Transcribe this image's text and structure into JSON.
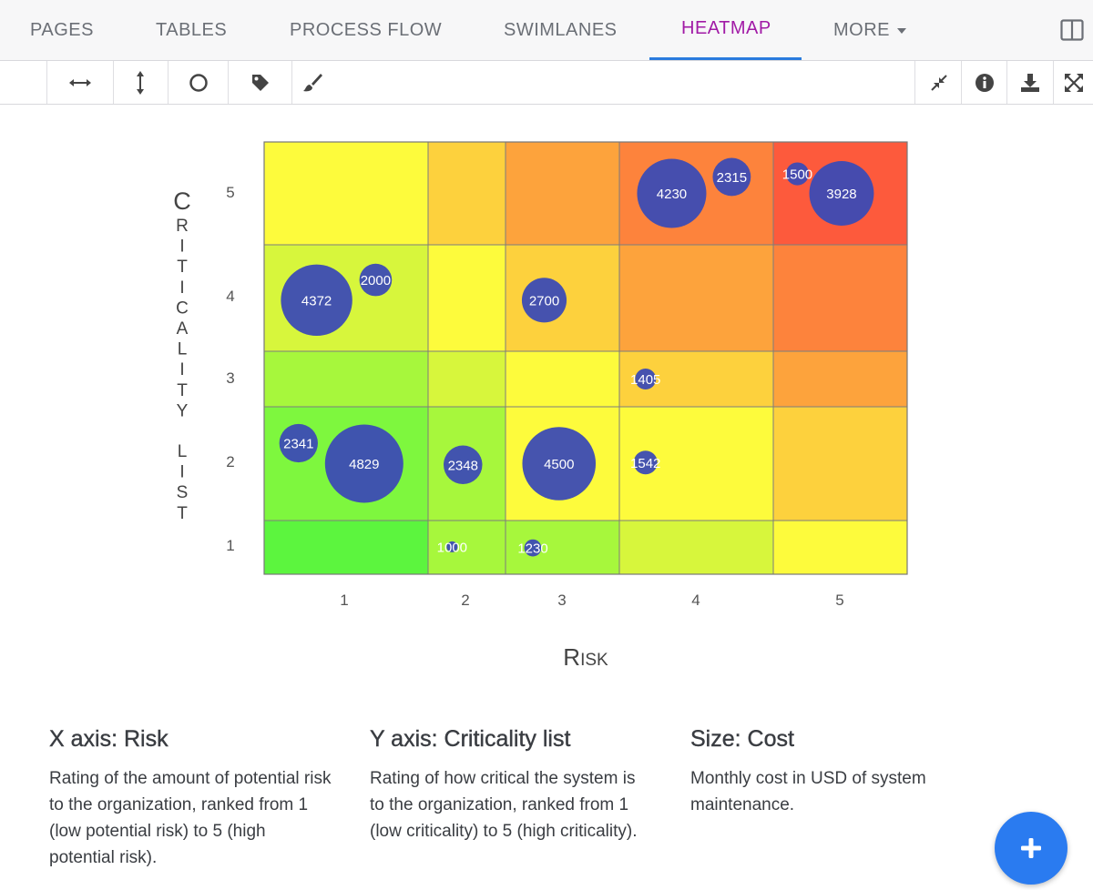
{
  "tabs": [
    {
      "label": "PAGES"
    },
    {
      "label": "TABLES"
    },
    {
      "label": "PROCESS FLOW"
    },
    {
      "label": "SWIMLANES"
    },
    {
      "label": "HEATMAP",
      "active": true
    },
    {
      "label": "MORE"
    }
  ],
  "toolbar": {
    "left_tools": [
      "resize-horizontal-icon",
      "resize-vertical-icon",
      "circle-icon",
      "tag-icon",
      "paintbrush-icon"
    ],
    "right_tools": [
      "collapse-icon",
      "info-icon",
      "download-icon",
      "expand-icon"
    ]
  },
  "chart_data": {
    "type": "heatmap",
    "title": "",
    "xlabel": "Risk",
    "ylabel": "CRITICALITY LIST",
    "x_categories": [
      "1",
      "2",
      "3",
      "4",
      "5"
    ],
    "y_categories": [
      "1",
      "2",
      "3",
      "4",
      "5"
    ],
    "cell_colors": [
      [
        "#5cf53e",
        "#a7f73c",
        "#a7f73c",
        "#d7f63c",
        "#fdfb3c"
      ],
      [
        "#7ef73e",
        "#a7f73c",
        "#fdfb3c",
        "#fdfb3c",
        "#fdd13d"
      ],
      [
        "#a7f73c",
        "#d7f63c",
        "#fdfb3c",
        "#fdd13d",
        "#fda33c"
      ],
      [
        "#d7f63c",
        "#fdfb3c",
        "#fdd13d",
        "#fda33c",
        "#fd833c"
      ],
      [
        "#fdfb3c",
        "#fdd13d",
        "#fda33c",
        "#fd833c",
        "#fd5a3c"
      ]
    ],
    "bubbles": [
      {
        "x": 4,
        "y": 5,
        "cost": 4230
      },
      {
        "x": 4,
        "y": 5,
        "cost": 2315
      },
      {
        "x": 5,
        "y": 5,
        "cost": 1500
      },
      {
        "x": 5,
        "y": 5,
        "cost": 3928
      },
      {
        "x": 1,
        "y": 4,
        "cost": 4372
      },
      {
        "x": 1,
        "y": 4,
        "cost": 2000
      },
      {
        "x": 3,
        "y": 4,
        "cost": 2700
      },
      {
        "x": 4,
        "y": 3,
        "cost": 1405
      },
      {
        "x": 1,
        "y": 2,
        "cost": 2341
      },
      {
        "x": 1,
        "y": 2,
        "cost": 4829
      },
      {
        "x": 2,
        "y": 2,
        "cost": 2348
      },
      {
        "x": 3,
        "y": 2,
        "cost": 4500
      },
      {
        "x": 4,
        "y": 2,
        "cost": 1542
      },
      {
        "x": 2,
        "y": 1,
        "cost": 1000
      },
      {
        "x": 3,
        "y": 1,
        "cost": 1230
      }
    ],
    "bubble_color": "#3c4bb4",
    "size_label": "Cost"
  },
  "info": [
    {
      "title": "X axis: Risk",
      "desc": "Rating of the amount of potential risk to the organization, ranked from 1 (low potential risk) to 5 (high potential risk)."
    },
    {
      "title": "Y axis: Criticality list",
      "desc": "Rating of how critical the system is to the organization, ranked from 1 (low criticality) to 5 (high criticality)."
    },
    {
      "title": "Size: Cost",
      "desc": "Monthly cost in USD of system maintenance."
    }
  ],
  "colors": {
    "accent": "#a11aa6",
    "tab_underline": "#2a7bde",
    "fab": "#2a7bf0"
  }
}
